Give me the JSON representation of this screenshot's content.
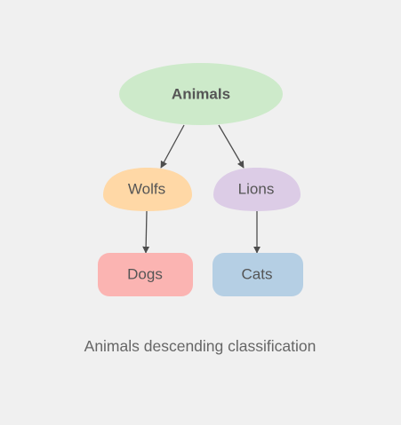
{
  "diagram": {
    "nodes": {
      "animals": {
        "label": "Animals",
        "color": "#cdeaca"
      },
      "wolfs": {
        "label": "Wolfs",
        "color": "#ffd8a6"
      },
      "lions": {
        "label": "Lions",
        "color": "#dccce6"
      },
      "dogs": {
        "label": "Dogs",
        "color": "#fbb4b2"
      },
      "cats": {
        "label": "Cats",
        "color": "#b5cfe4"
      }
    },
    "edges": [
      {
        "from": "Animals",
        "to": "Wolfs"
      },
      {
        "from": "Animals",
        "to": "Lions"
      },
      {
        "from": "Wolfs",
        "to": "Dogs"
      },
      {
        "from": "Lions",
        "to": "Cats"
      }
    ],
    "edge_color": "#4d4d4d",
    "caption": "Animals descending classification"
  }
}
